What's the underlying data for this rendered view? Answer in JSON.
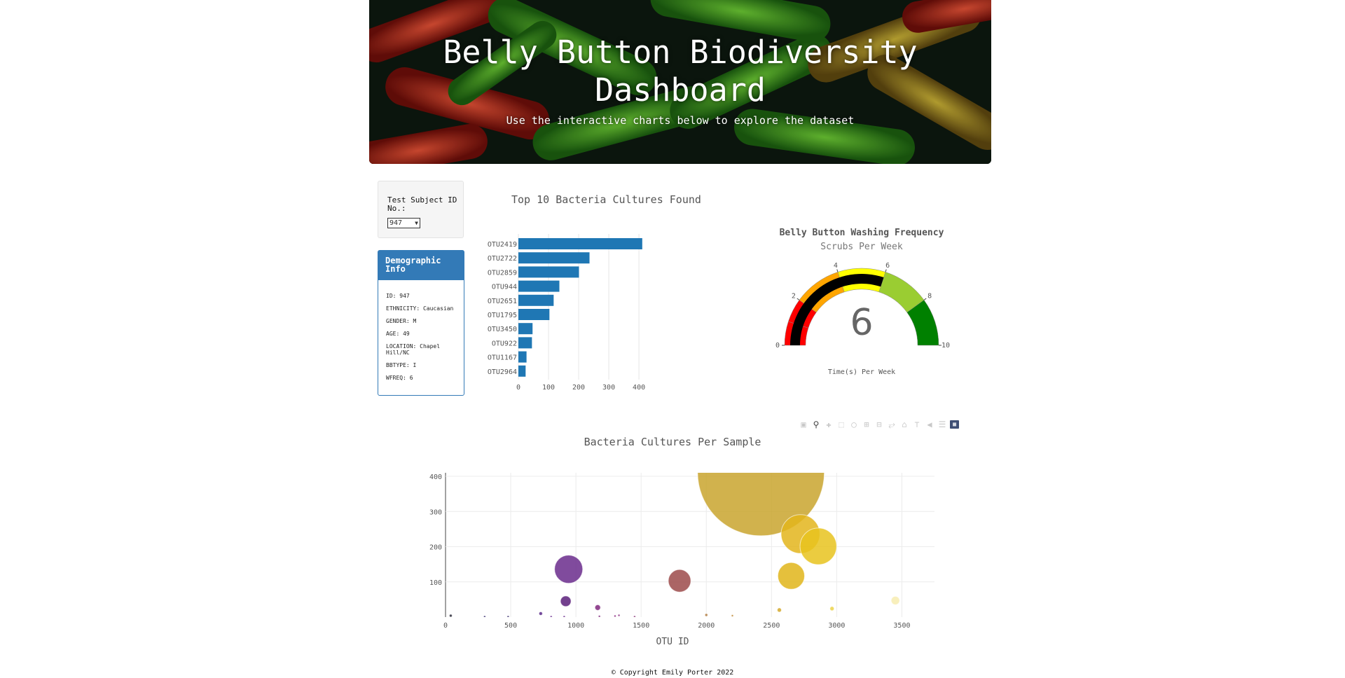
{
  "hero": {
    "title_line1": "Belly Button Biodiversity",
    "title_line2": "Dashboard",
    "subtitle": "Use the interactive charts below to explore the dataset"
  },
  "selector": {
    "label": "Test Subject ID No.:",
    "selected": "947"
  },
  "demographic": {
    "heading": "Demographic Info",
    "lines": [
      "ID: 947",
      "ETHNICITY: Caucasian",
      "GENDER: M",
      "AGE: 49",
      "LOCATION: Chapel Hill/NC",
      "BBTYPE: I",
      "WFREQ: 6"
    ]
  },
  "modebar": {
    "icons": [
      "camera-icon",
      "zoom-icon",
      "pan-icon",
      "box-select-icon",
      "lasso-icon",
      "zoom-in-icon",
      "zoom-out-icon",
      "autoscale-icon",
      "reset-axes-icon",
      "spike-lines-icon",
      "hover-closest-icon",
      "hover-compare-icon",
      "plotly-logo-icon"
    ]
  },
  "footer": {
    "text": "© Copyright Emily Porter 2022"
  },
  "chart_data": [
    {
      "type": "bar",
      "orientation": "horizontal",
      "title": "Top 10 Bacteria Cultures Found",
      "categories": [
        "OTU2419",
        "OTU2722",
        "OTU2859",
        "OTU944",
        "OTU2651",
        "OTU1795",
        "OTU3450",
        "OTU922",
        "OTU1167",
        "OTU2964"
      ],
      "values": [
        411,
        236,
        201,
        136,
        117,
        103,
        47,
        45,
        27,
        24
      ],
      "xlim": [
        0,
        430
      ],
      "xticks": [
        0,
        100,
        200,
        300,
        400
      ],
      "color": "#1f77b4",
      "grid": true
    },
    {
      "type": "gauge",
      "title": "Belly Button Washing Frequency",
      "subtitle": "Scrubs Per Week",
      "value": 6,
      "range": [
        0,
        10
      ],
      "ticks": [
        0,
        2,
        4,
        6,
        8,
        10
      ],
      "steps": [
        {
          "range": [
            0,
            1
          ],
          "color": "#ff0000"
        },
        {
          "range": [
            1,
            2
          ],
          "color": "#ff0000"
        },
        {
          "range": [
            2,
            4
          ],
          "color": "#ffa500"
        },
        {
          "range": [
            4,
            6
          ],
          "color": "#ffff00"
        },
        {
          "range": [
            6,
            8
          ],
          "color": "#9acd32"
        },
        {
          "range": [
            8,
            10
          ],
          "color": "#008000"
        }
      ],
      "bar_color": "#000000",
      "xlabel": "Time(s) Per Week"
    },
    {
      "type": "scatter",
      "title": "Bacteria Cultures Per Sample",
      "xlabel": "OTU ID",
      "ylabel": "",
      "xlim": [
        0,
        3750
      ],
      "ylim": [
        0,
        410
      ],
      "xticks": [
        0,
        500,
        1000,
        1500,
        2000,
        2500,
        3000,
        3500
      ],
      "yticks": [
        100,
        200,
        300,
        400
      ],
      "grid": true,
      "marker_sizing": "size equals sample value, radius in y-units",
      "points": [
        {
          "x": 40,
          "y": 4,
          "size": 4,
          "color": "#2b2b3a"
        },
        {
          "x": 300,
          "y": 1,
          "size": 2,
          "color": "#3b2f6e"
        },
        {
          "x": 480,
          "y": 1,
          "size": 1,
          "color": "#3b2f6e"
        },
        {
          "x": 730,
          "y": 10,
          "size": 5,
          "color": "#5c2a8a"
        },
        {
          "x": 810,
          "y": 1,
          "size": 1,
          "color": "#6b2d8e"
        },
        {
          "x": 910,
          "y": 1,
          "size": 1,
          "color": "#6b2d8e"
        },
        {
          "x": 944,
          "y": 136,
          "size": 40,
          "color": "#6a2c8c"
        },
        {
          "x": 922,
          "y": 45,
          "size": 15,
          "color": "#5a1f7a"
        },
        {
          "x": 1167,
          "y": 27,
          "size": 8,
          "color": "#80287e"
        },
        {
          "x": 1180,
          "y": 2,
          "size": 2,
          "color": "#80287e"
        },
        {
          "x": 1300,
          "y": 3,
          "size": 2,
          "color": "#8c2d82"
        },
        {
          "x": 1330,
          "y": 5,
          "size": 2,
          "color": "#8c2d82"
        },
        {
          "x": 1450,
          "y": 1,
          "size": 1,
          "color": "#8c3a7a"
        },
        {
          "x": 1795,
          "y": 103,
          "size": 32,
          "color": "#9c4a4a"
        },
        {
          "x": 2000,
          "y": 6,
          "size": 4,
          "color": "#b07a40"
        },
        {
          "x": 2200,
          "y": 4,
          "size": 2,
          "color": "#c08a35"
        },
        {
          "x": 2419,
          "y": 411,
          "size": 180,
          "color": "#c9a52e"
        },
        {
          "x": 2560,
          "y": 20,
          "size": 6,
          "color": "#d3a92a"
        },
        {
          "x": 2651,
          "y": 117,
          "size": 38,
          "color": "#e0b51a"
        },
        {
          "x": 2722,
          "y": 236,
          "size": 55,
          "color": "#e3b51c"
        },
        {
          "x": 2859,
          "y": 201,
          "size": 52,
          "color": "#e8c31e"
        },
        {
          "x": 2964,
          "y": 24,
          "size": 6,
          "color": "#ebd24a"
        },
        {
          "x": 3450,
          "y": 47,
          "size": 12,
          "color": "#f7ecb0"
        }
      ]
    }
  ]
}
